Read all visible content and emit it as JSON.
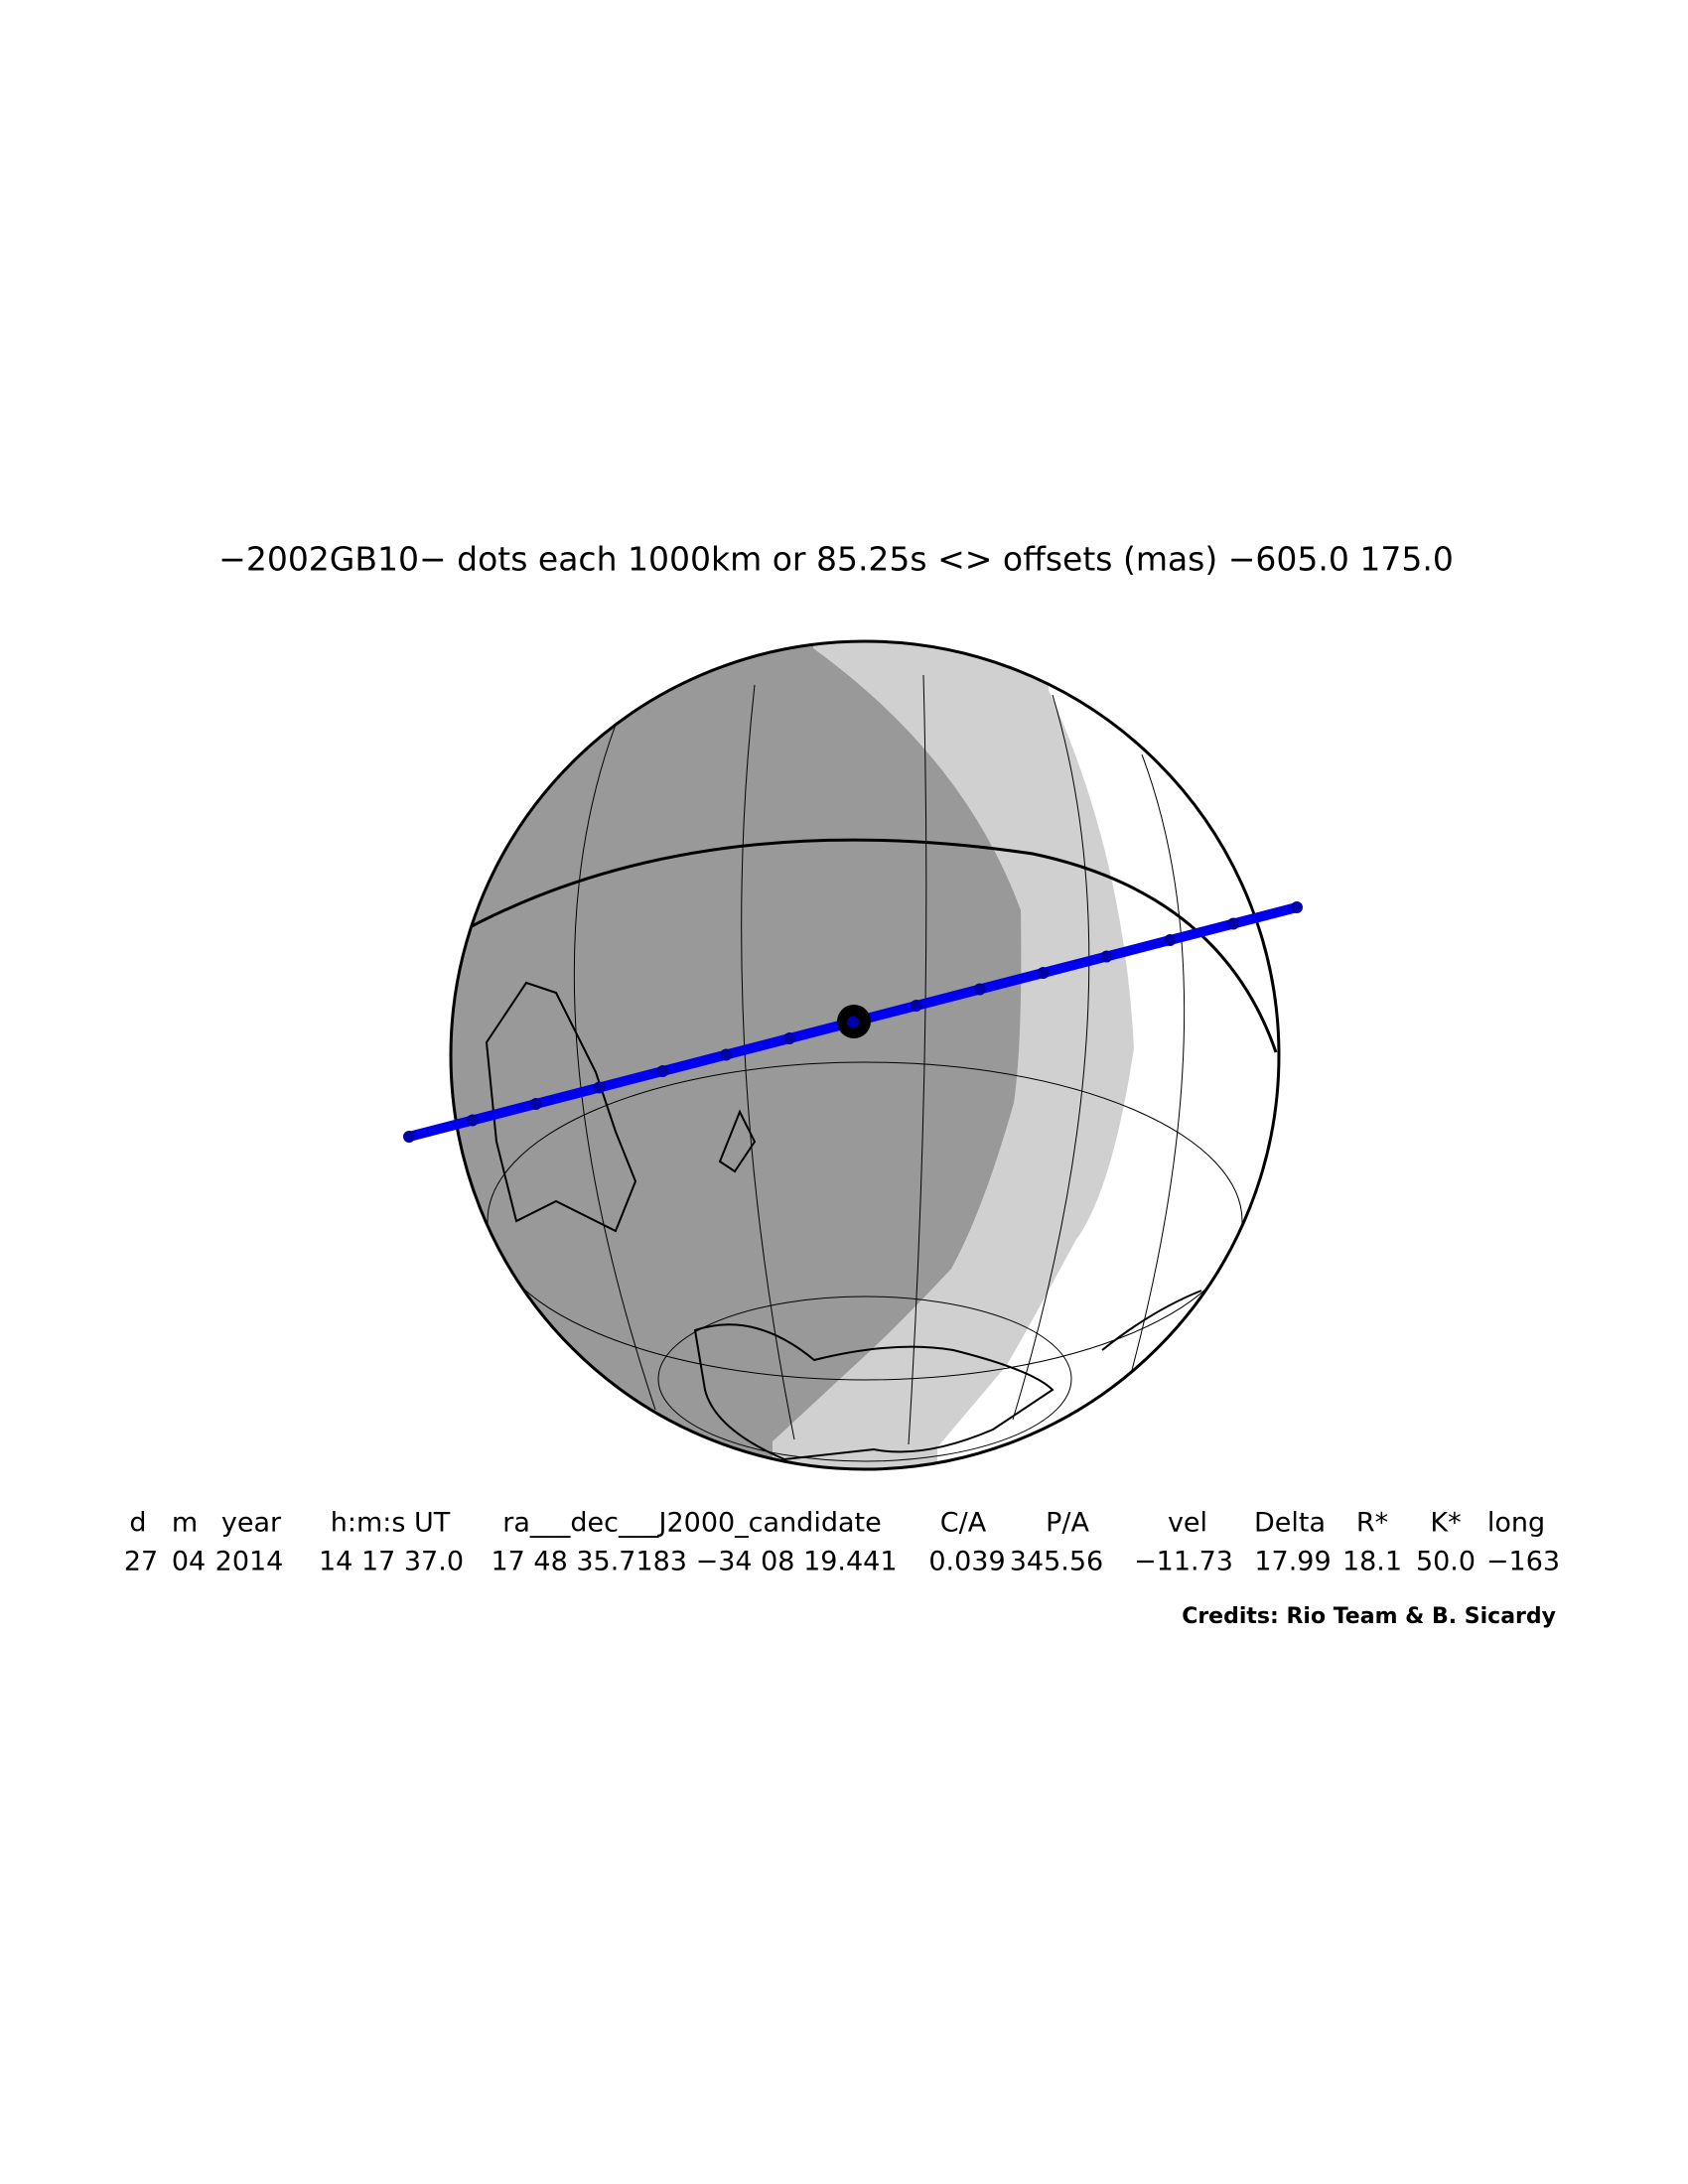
{
  "title": "−2002GB10− dots each 1000km or 85.25s <> offsets (mas) −605.0  175.0",
  "table": {
    "headers": [
      "d",
      "m",
      "year",
      "h:m:s UT",
      "ra___dec___J2000_candidate",
      "C/A",
      "P/A",
      "vel",
      "Delta",
      "R*",
      "K*",
      "long"
    ],
    "values": [
      "27",
      "04",
      "2014",
      "14 17 37.0",
      "17 48 35.7183 −34 08 19.441",
      "0.039",
      "345.56",
      "−11.73",
      "17.99",
      "18.1",
      "50.0",
      "−163"
    ]
  },
  "credits": "Credits: Rio Team & B. Sicardy"
}
